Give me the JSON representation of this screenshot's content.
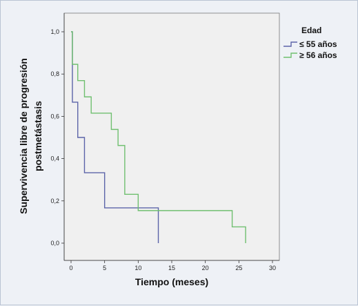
{
  "chart_data": {
    "type": "line",
    "step": true,
    "xlabel": "Tiempo (meses)",
    "ylabel_lines": [
      "Supervivencia libre de progresión",
      "postmetástasis"
    ],
    "xlim": [
      0,
      30
    ],
    "ylim": [
      0,
      1
    ],
    "x_ticks": [
      0,
      5,
      10,
      15,
      20,
      25,
      30
    ],
    "y_ticks": [
      "0,0",
      "0,2",
      "0,4",
      "0,6",
      "0,8",
      "1,0"
    ],
    "grid": false,
    "legend": {
      "title": "Edad",
      "placement": "top-right"
    },
    "series": [
      {
        "name": "≤ 55 años",
        "color": "#5b63a8",
        "x": [
          0,
          0.2,
          1,
          2,
          5,
          13
        ],
        "y": [
          1.0,
          0.667,
          0.5,
          0.333,
          0.167,
          0.0
        ]
      },
      {
        "name": "≥ 56 años",
        "color": "#6fbf6f",
        "x": [
          0,
          0.2,
          1,
          2,
          3,
          6,
          7,
          8,
          10,
          24,
          26
        ],
        "y": [
          1.0,
          0.846,
          0.769,
          0.692,
          0.615,
          0.538,
          0.462,
          0.231,
          0.154,
          0.077,
          0.0
        ]
      }
    ]
  }
}
